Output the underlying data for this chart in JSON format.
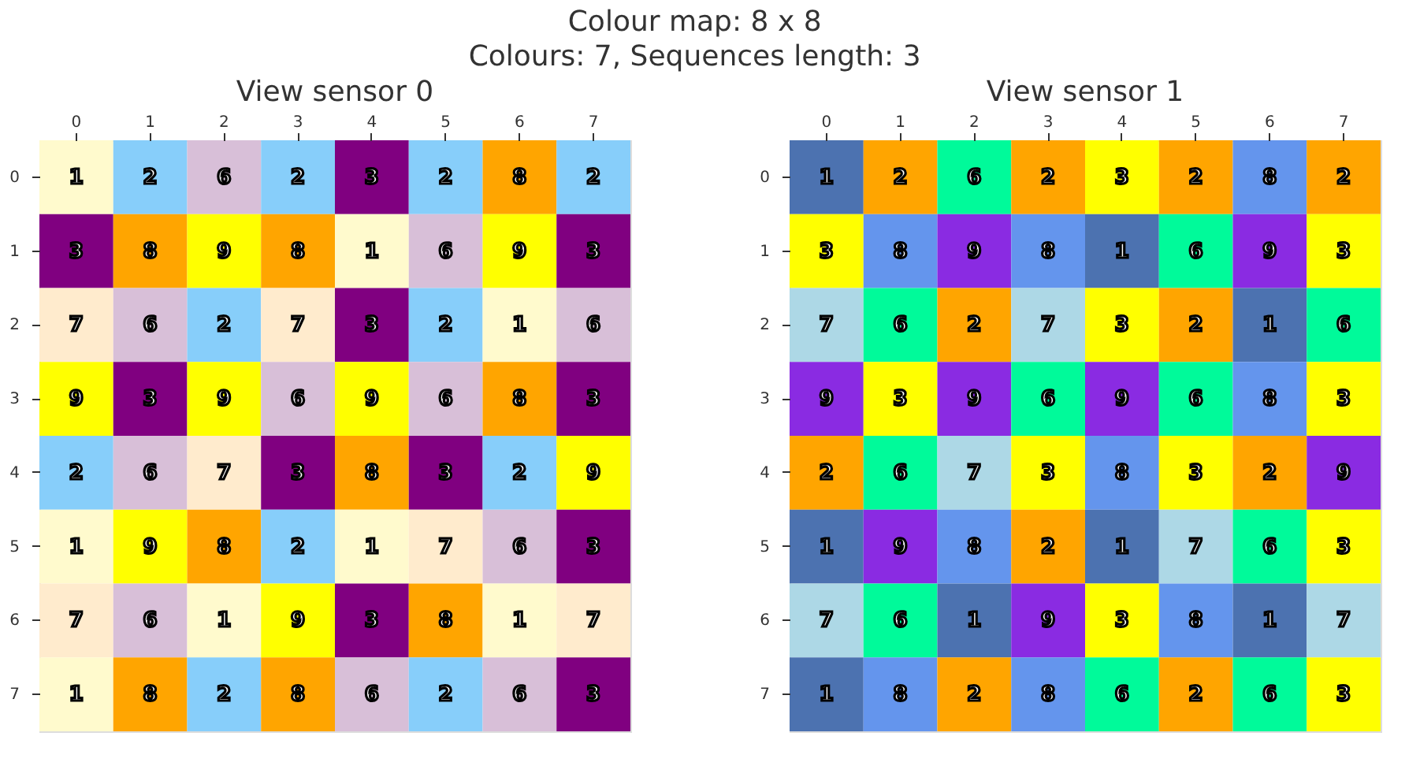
{
  "chart_data": [
    {
      "type": "heatmap",
      "title": "View sensor 0",
      "annotations": [
        "Colour map: 8 x 8",
        "Colours: 7, Sequences length: 3"
      ],
      "data_labels": true,
      "grid": false,
      "categories": [
        "0",
        "1",
        "2",
        "3",
        "4",
        "5",
        "6",
        "7"
      ],
      "y_categories": [
        "0",
        "1",
        "2",
        "3",
        "4",
        "5",
        "6",
        "7"
      ],
      "cells": [
        [
          1,
          2,
          6,
          2,
          3,
          2,
          8,
          2
        ],
        [
          3,
          8,
          9,
          8,
          1,
          6,
          9,
          3
        ],
        [
          7,
          6,
          2,
          7,
          3,
          2,
          1,
          6
        ],
        [
          9,
          3,
          9,
          6,
          9,
          6,
          8,
          3
        ],
        [
          2,
          6,
          7,
          3,
          8,
          3,
          2,
          9
        ],
        [
          1,
          9,
          8,
          2,
          1,
          7,
          6,
          3
        ],
        [
          7,
          6,
          1,
          9,
          3,
          8,
          1,
          7
        ],
        [
          1,
          8,
          2,
          8,
          6,
          2,
          6,
          3
        ]
      ],
      "colors": [
        [
          "#fffacd",
          "#87cefa",
          "#d8bfd8",
          "#87cefa",
          "#800080",
          "#87cefa",
          "#ffa500",
          "#87cefa"
        ],
        [
          "#800080",
          "#ffa500",
          "#ffff00",
          "#ffa500",
          "#fffacd",
          "#d8bfd8",
          "#ffff00",
          "#800080"
        ],
        [
          "#ffebcd",
          "#d8bfd8",
          "#87cefa",
          "#ffebcd",
          "#800080",
          "#87cefa",
          "#fffacd",
          "#d8bfd8"
        ],
        [
          "#ffff00",
          "#800080",
          "#ffff00",
          "#d8bfd8",
          "#ffff00",
          "#d8bfd8",
          "#ffa500",
          "#800080"
        ],
        [
          "#87cefa",
          "#d8bfd8",
          "#ffebcd",
          "#800080",
          "#ffa500",
          "#800080",
          "#87cefa",
          "#ffff00"
        ],
        [
          "#fffacd",
          "#ffff00",
          "#ffa500",
          "#87cefa",
          "#fffacd",
          "#ffebcd",
          "#d8bfd8",
          "#800080"
        ],
        [
          "#ffebcd",
          "#d8bfd8",
          "#fffacd",
          "#ffff00",
          "#800080",
          "#ffa500",
          "#fffacd",
          "#ffebcd"
        ],
        [
          "#fffacd",
          "#ffa500",
          "#87cefa",
          "#ffa500",
          "#d8bfd8",
          "#87cefa",
          "#d8bfd8",
          "#800080"
        ]
      ]
    },
    {
      "type": "heatmap",
      "title": "View sensor 1",
      "data_labels": true,
      "grid": false,
      "categories": [
        "0",
        "1",
        "2",
        "3",
        "4",
        "5",
        "6",
        "7"
      ],
      "y_categories": [
        "0",
        "1",
        "2",
        "3",
        "4",
        "5",
        "6",
        "7"
      ],
      "cells": [
        [
          1,
          2,
          6,
          2,
          3,
          2,
          8,
          2
        ],
        [
          3,
          8,
          9,
          8,
          1,
          6,
          9,
          3
        ],
        [
          7,
          6,
          2,
          7,
          3,
          2,
          1,
          6
        ],
        [
          9,
          3,
          9,
          6,
          9,
          6,
          8,
          3
        ],
        [
          2,
          6,
          7,
          3,
          8,
          3,
          2,
          9
        ],
        [
          1,
          9,
          8,
          2,
          1,
          7,
          6,
          3
        ],
        [
          7,
          6,
          1,
          9,
          3,
          8,
          1,
          7
        ],
        [
          1,
          8,
          2,
          8,
          6,
          2,
          6,
          3
        ]
      ],
      "colors": [
        [
          "#4c72b0",
          "#ffa500",
          "#00fa9a",
          "#ffa500",
          "#ffff00",
          "#ffa500",
          "#6495ed",
          "#ffa500"
        ],
        [
          "#ffff00",
          "#6495ed",
          "#8a2be2",
          "#6495ed",
          "#4c72b0",
          "#00fa9a",
          "#8a2be2",
          "#ffff00"
        ],
        [
          "#add8e6",
          "#00fa9a",
          "#ffa500",
          "#add8e6",
          "#ffff00",
          "#ffa500",
          "#4c72b0",
          "#00fa9a"
        ],
        [
          "#8a2be2",
          "#ffff00",
          "#8a2be2",
          "#00fa9a",
          "#8a2be2",
          "#00fa9a",
          "#6495ed",
          "#ffff00"
        ],
        [
          "#ffa500",
          "#00fa9a",
          "#add8e6",
          "#ffff00",
          "#6495ed",
          "#ffff00",
          "#ffa500",
          "#8a2be2"
        ],
        [
          "#4c72b0",
          "#8a2be2",
          "#6495ed",
          "#ffa500",
          "#4c72b0",
          "#add8e6",
          "#00fa9a",
          "#ffff00"
        ],
        [
          "#add8e6",
          "#00fa9a",
          "#4c72b0",
          "#8a2be2",
          "#ffff00",
          "#6495ed",
          "#4c72b0",
          "#add8e6"
        ],
        [
          "#4c72b0",
          "#6495ed",
          "#ffa500",
          "#6495ed",
          "#00fa9a",
          "#ffa500",
          "#00fa9a",
          "#ffff00"
        ]
      ]
    }
  ]
}
